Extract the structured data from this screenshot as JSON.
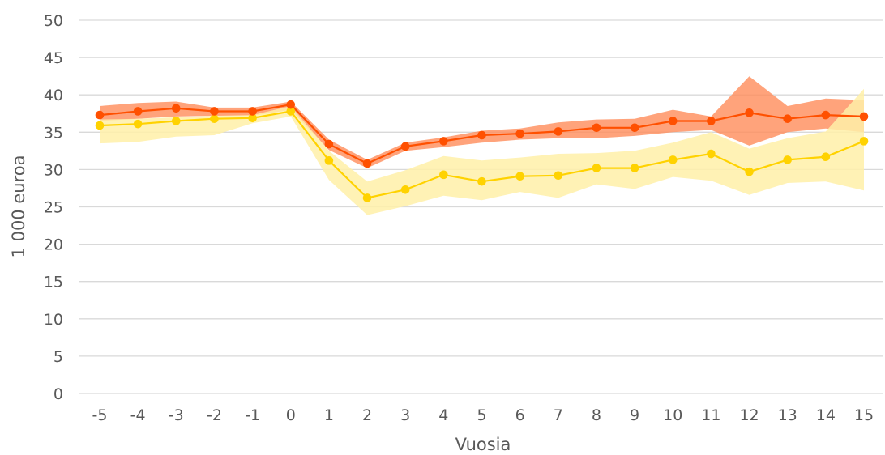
{
  "chart_data": {
    "type": "line",
    "xlabel": "Vuosia",
    "ylabel": "1 000 euroa",
    "ylim": [
      0,
      50
    ],
    "yticks": [
      "0",
      "5",
      "10",
      "15",
      "20",
      "25",
      "30",
      "35",
      "40",
      "45",
      "50"
    ],
    "categories": [
      "-5",
      "-4",
      "-3",
      "-2",
      "-1",
      "0",
      "1",
      "2",
      "3",
      "4",
      "5",
      "6",
      "7",
      "8",
      "9",
      "10",
      "11",
      "12",
      "13",
      "14",
      "15"
    ],
    "grid": true,
    "series": [
      {
        "color": "#ff5000",
        "band_color": "#ff8c5a",
        "values": [
          37.3,
          37.8,
          38.2,
          37.8,
          37.8,
          38.7,
          33.4,
          30.8,
          33.1,
          33.8,
          34.6,
          34.8,
          35.1,
          35.6,
          35.6,
          36.5,
          36.5,
          37.6,
          36.8,
          37.3,
          37.1
        ],
        "band_low": [
          36.5,
          36.8,
          37.1,
          37.2,
          37.2,
          38.0,
          32.6,
          30.2,
          32.5,
          33.0,
          33.6,
          34.0,
          34.2,
          34.2,
          34.5,
          35.0,
          35.3,
          33.2,
          35.0,
          35.5,
          35.0
        ],
        "band_high": [
          38.5,
          38.9,
          39.1,
          38.3,
          38.3,
          39.1,
          34.0,
          31.3,
          33.6,
          34.3,
          35.2,
          35.5,
          36.3,
          36.7,
          36.8,
          38.0,
          37.1,
          42.5,
          38.5,
          39.5,
          39.3
        ]
      },
      {
        "color": "#ffd200",
        "band_color": "#fff0a8",
        "values": [
          35.9,
          36.1,
          36.5,
          36.8,
          36.9,
          37.8,
          31.2,
          26.2,
          27.3,
          29.3,
          28.4,
          29.1,
          29.2,
          30.2,
          30.2,
          31.3,
          32.1,
          29.7,
          31.3,
          31.7,
          33.8
        ],
        "band_low": [
          33.5,
          33.7,
          34.4,
          34.6,
          36.2,
          37.1,
          28.6,
          23.9,
          25.1,
          26.5,
          25.9,
          27.0,
          26.2,
          28.0,
          27.4,
          29.0,
          28.5,
          26.6,
          28.2,
          28.4,
          27.2
        ],
        "band_high": [
          36.7,
          36.8,
          37.0,
          37.2,
          37.3,
          38.5,
          32.5,
          28.4,
          29.9,
          31.8,
          31.2,
          31.6,
          32.1,
          32.2,
          32.5,
          33.6,
          35.0,
          32.8,
          34.2,
          35.1,
          40.8
        ]
      }
    ]
  }
}
